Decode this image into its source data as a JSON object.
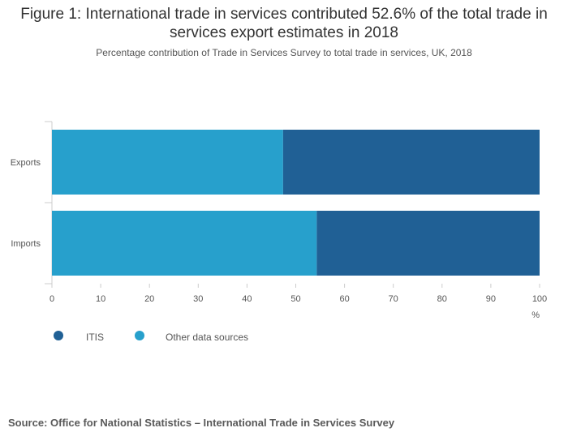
{
  "header": {
    "title": "Figure 1: International trade in services contributed 52.6% of the total trade in services export estimates in 2018",
    "subtitle": "Percentage contribution of Trade in Services Survey to total trade in services, UK, 2018"
  },
  "chart_data": {
    "type": "bar",
    "orientation": "horizontal",
    "stacked": true,
    "categories": [
      "Exports",
      "Imports"
    ],
    "series": [
      {
        "name": "Other data sources",
        "values": [
          47.4,
          54.3
        ],
        "color": "#27a0cc"
      },
      {
        "name": "ITIS",
        "values": [
          52.6,
          45.7
        ],
        "color": "#206095"
      }
    ],
    "x_ticks": [
      0,
      10,
      20,
      30,
      40,
      50,
      60,
      70,
      80,
      90,
      100
    ],
    "xlim": [
      0,
      100
    ],
    "x_unit": "%",
    "legend_position": "bottom-left"
  },
  "legend": {
    "items": [
      {
        "label": "ITIS",
        "color": "#206095"
      },
      {
        "label": "Other data sources",
        "color": "#27a0cc"
      }
    ]
  },
  "footer": {
    "source": "Source:  Office for National Statistics – International Trade in Services Survey"
  }
}
